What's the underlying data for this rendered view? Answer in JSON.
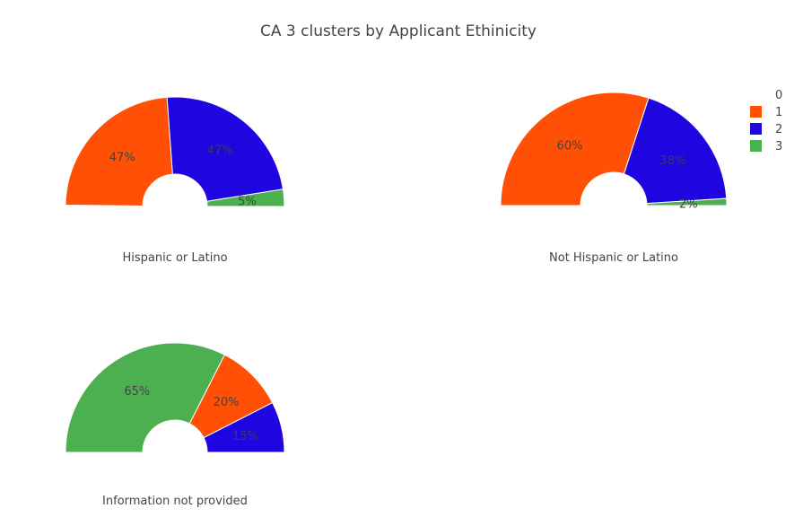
{
  "chart_data": {
    "type": "pie",
    "title": "CA 3 clusters by Applicant Ethinicity",
    "legend": {
      "placement": "top-right",
      "entries": [
        {
          "label": "0",
          "color": ""
        },
        {
          "label": "1",
          "color": "#ff5005"
        },
        {
          "label": "2",
          "color": "#1f06e0"
        },
        {
          "label": "3",
          "color": "#4caf50"
        }
      ]
    },
    "subplots": [
      {
        "label": "Hispanic or Latino",
        "slices": [
          {
            "series": "0",
            "value": 0.4,
            "text": "",
            "color": "#ffffff"
          },
          {
            "series": "1",
            "value": 47,
            "text": "47%",
            "color": "#ff5005",
            "text_color": "#444444"
          },
          {
            "series": "2",
            "value": 47,
            "text": "47%",
            "color": "#1f06e0",
            "text_color": "#3a3a5a"
          },
          {
            "series": "3",
            "value": 5,
            "text": "5%",
            "color": "#4caf50",
            "text_color": "#444444"
          }
        ]
      },
      {
        "label": "Not Hispanic or Latino",
        "slices": [
          {
            "series": "1",
            "value": 60,
            "text": "60%",
            "color": "#ff5005",
            "text_color": "#444444"
          },
          {
            "series": "2",
            "value": 38,
            "text": "38%",
            "color": "#1f06e0",
            "text_color": "#3a3a5a"
          },
          {
            "series": "3",
            "value": 2,
            "text": "2%",
            "color": "#4caf50",
            "text_color": "#444444"
          }
        ]
      },
      {
        "label": "Information not provided",
        "slices": [
          {
            "series": "3",
            "value": 65,
            "text": "65%",
            "color": "#4caf50",
            "text_color": "#444444"
          },
          {
            "series": "1",
            "value": 20,
            "text": "20%",
            "color": "#ff5005",
            "text_color": "#444444"
          },
          {
            "series": "2",
            "value": 15,
            "text": "15%",
            "color": "#1f06e0",
            "text_color": "#3a3a5a"
          }
        ]
      }
    ]
  }
}
